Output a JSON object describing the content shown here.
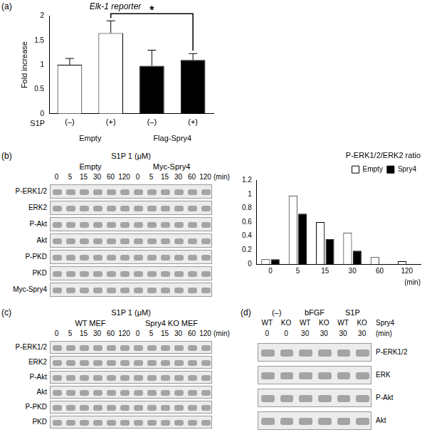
{
  "chart_data": [
    {
      "panel": "(a)",
      "type": "bar",
      "title": "Elk-1 reporter",
      "y_label": "Fold increase",
      "categories": [
        "(–)",
        "(+)",
        "(–)",
        "(+)"
      ],
      "values": [
        1.0,
        1.65,
        0.98,
        1.1
      ],
      "errors": [
        0.13,
        0.25,
        0.32,
        0.13
      ],
      "colors": [
        "#ffffff",
        "#ffffff",
        "#000000",
        "#000000"
      ],
      "row_label": "S1P",
      "groups": [
        "Empty",
        "Flag-Spry4"
      ],
      "annotation": "*",
      "ylim": [
        0,
        2
      ],
      "yticks": [
        0,
        0.5,
        1,
        1.5,
        2
      ],
      "grid": false
    },
    {
      "type": "bar",
      "title": "P-ERK1/2/ERK2 ratio",
      "x_label": "(min)",
      "categories": [
        "0",
        "5",
        "15",
        "30",
        "60",
        "120"
      ],
      "series": [
        {
          "name": "Empty",
          "color": "#ffffff",
          "values": [
            0.07,
            0.98,
            0.6,
            0.45,
            0.1,
            0.04
          ]
        },
        {
          "name": "Spry4",
          "color": "#000000",
          "values": [
            0.07,
            0.72,
            0.36,
            0.19,
            0,
            0
          ]
        }
      ],
      "ylim": [
        0,
        1.2
      ],
      "yticks": [
        0,
        0.2,
        0.4,
        0.6,
        0.8,
        1,
        1.2
      ],
      "legend": "top-right",
      "grid": false
    }
  ],
  "blots": [
    {
      "panel": "(b)",
      "treatment": "S1P 1 (μM)",
      "groups": [
        "Empty",
        "Myc-Spry4"
      ],
      "lanes": [
        "0",
        "5",
        "15",
        "30",
        "60",
        "120",
        "0",
        "5",
        "15",
        "30",
        "60",
        "120"
      ],
      "lane_unit": "(min)",
      "rows": [
        "P-ERK1/2",
        "ERK2",
        "P-Akt",
        "Akt",
        "P-PKD",
        "PKD",
        "Myc-Spry4"
      ]
    },
    {
      "panel": "(c)",
      "treatment": "S1P 1 (μM)",
      "groups": [
        "WT MEF",
        "Spry4 KO MEF"
      ],
      "lanes": [
        "0",
        "5",
        "15",
        "30",
        "60",
        "120",
        "0",
        "5",
        "15",
        "30",
        "60",
        "120"
      ],
      "lane_unit": "(min)",
      "rows": [
        "P-ERK1/2",
        "ERK2",
        "P-Akt",
        "Akt",
        "P-PKD",
        "PKD"
      ]
    },
    {
      "panel": "(d)",
      "groups": [
        "(–)",
        "bFGF",
        "S1P"
      ],
      "genotype_label": "Spry4",
      "genotypes": [
        "WT",
        "KO",
        "WT",
        "KO",
        "WT",
        "KO"
      ],
      "lanes": [
        "0",
        "0",
        "30",
        "30",
        "30",
        "30"
      ],
      "lane_unit": "(min)",
      "rows": [
        "P-ERK1/2",
        "ERK",
        "P-Akt",
        "Akt"
      ]
    }
  ]
}
